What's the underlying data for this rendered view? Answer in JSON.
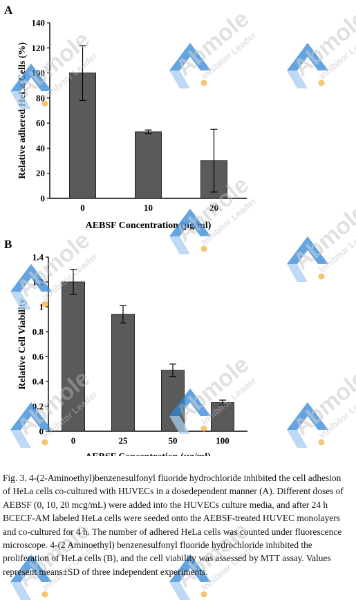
{
  "panels": [
    {
      "letter": "A",
      "chart_data": {
        "type": "bar",
        "categories": [
          "0",
          "10",
          "20"
        ],
        "values": [
          100,
          53,
          30
        ],
        "errors": [
          22,
          1.5,
          25
        ],
        "xlabel": "AEBSF Concentration (µg/ml)",
        "ylabel": "Relative adhered HeLa Cells (%)",
        "ylim": [
          0,
          140
        ],
        "yticks": [
          "0",
          "20",
          "40",
          "60",
          "80",
          "100",
          "120",
          "140"
        ],
        "grid": false,
        "bar_color": "#5a5a5a"
      }
    },
    {
      "letter": "B",
      "chart_data": {
        "type": "bar",
        "categories": [
          "0",
          "25",
          "50",
          "100"
        ],
        "values": [
          1.2,
          0.94,
          0.49,
          0.23
        ],
        "errors": [
          0.1,
          0.07,
          0.05,
          0.02
        ],
        "xlabel": "AEBSF Concentration (µg/ml)",
        "ylabel": "Relative Cell Viability",
        "ylim": [
          0,
          1.4
        ],
        "yticks": [
          "0",
          "0.2",
          "0.4",
          "0.6",
          "0.8",
          "1",
          "1.2",
          "1.4"
        ],
        "grid": false,
        "bar_color": "#5a5a5a"
      }
    }
  ],
  "watermark": {
    "brand": "Abmole",
    "tagline": "Inhibitor Leader",
    "colors": {
      "blue": "#2f86d8",
      "light_blue": "#a9cdef",
      "dot": "#f2b342",
      "text": "#bdbdbd"
    }
  },
  "caption": "Fig. 3. 4-(2-Aminoethyl)benzenesulfonyl fluoride hydrochloride inhibited the cell adhesion of HeLa cells co-cultured with HUVECs in a dosedependent manner (A). Different doses of AEBSF (0, 10, 20 mcg/mL) were added into the HUVECs culture media, and after 24 h BCECF-AM labeled HeLa cells were seeded onto the AEBSF-treated HUVEC monolayers and co-cultured for 4 h. The number of adhered HeLa cells was counted under fluorescence microscope. 4-(2 Aminoethyl) benzenesulfonyl fluoride hydrochloride inhibited the proliferation of HeLa cells (B), and the cell viability was assessed by MTT assay. Values represent means±SD of three independent experiments."
}
